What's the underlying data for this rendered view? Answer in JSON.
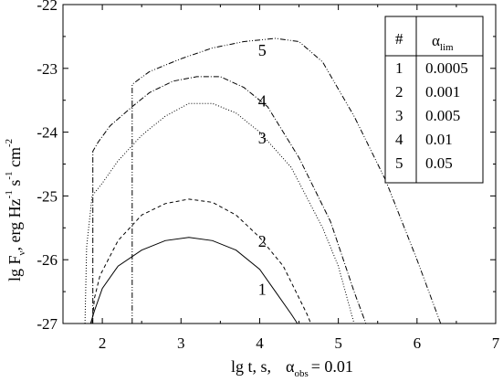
{
  "chart_data": {
    "type": "line",
    "xlabel_parts": {
      "main": "lg t, s,",
      "alpha": "α",
      "alpha_sub": "obs",
      "value": "= 0.01"
    },
    "ylabel_parts": {
      "a": "lg F",
      "a_sub": "ν",
      "b": ", erg Hz",
      "e1": "-1",
      "c": " s",
      "e2": "-1",
      "d": " cm",
      "e3": "-2"
    },
    "xlim": [
      1.5,
      7
    ],
    "ylim": [
      -27,
      -22
    ],
    "xticks": [
      "2",
      "3",
      "4",
      "5",
      "6",
      "7"
    ],
    "xtick_values": [
      2,
      3,
      4,
      5,
      6,
      7
    ],
    "yticks": [
      "-27",
      "-26",
      "-25",
      "-24",
      "-23",
      "-22"
    ],
    "ytick_values": [
      -27,
      -26,
      -25,
      -24,
      -23,
      -22
    ],
    "legend": {
      "header": [
        "#",
        "α"
      ],
      "header_sub": "lim",
      "rows": [
        [
          "1",
          "0.0005"
        ],
        [
          "2",
          "0.001"
        ],
        [
          "3",
          "0.005"
        ],
        [
          "4",
          "0.01"
        ],
        [
          "5",
          "0.05"
        ]
      ]
    },
    "series": [
      {
        "label": "1",
        "label_pos": [
          3.98,
          -26.55
        ],
        "style": "solid",
        "points": [
          [
            1.85,
            -27
          ],
          [
            1.9,
            -26.8
          ],
          [
            2.0,
            -26.45
          ],
          [
            2.2,
            -26.1
          ],
          [
            2.5,
            -25.85
          ],
          [
            2.8,
            -25.7
          ],
          [
            3.1,
            -25.65
          ],
          [
            3.4,
            -25.7
          ],
          [
            3.7,
            -25.85
          ],
          [
            4.0,
            -26.15
          ],
          [
            4.2,
            -26.5
          ],
          [
            4.4,
            -26.85
          ],
          [
            4.48,
            -27
          ]
        ]
      },
      {
        "label": "2",
        "label_pos": [
          3.98,
          -25.8
        ],
        "style": "dashed",
        "points": [
          [
            1.87,
            -27
          ],
          [
            1.9,
            -26.6
          ],
          [
            1.97,
            -26.25
          ],
          [
            2.2,
            -25.7
          ],
          [
            2.5,
            -25.3
          ],
          [
            2.8,
            -25.12
          ],
          [
            3.1,
            -25.05
          ],
          [
            3.4,
            -25.1
          ],
          [
            3.7,
            -25.3
          ],
          [
            4.0,
            -25.65
          ],
          [
            4.3,
            -26.1
          ],
          [
            4.6,
            -26.85
          ],
          [
            4.65,
            -27
          ]
        ]
      },
      {
        "label": "3",
        "label_pos": [
          3.98,
          -24.18
        ],
        "style": "dotted",
        "points": [
          [
            1.78,
            -27
          ],
          [
            1.8,
            -25.8
          ],
          [
            1.87,
            -25.0
          ],
          [
            2.0,
            -24.8
          ],
          [
            2.2,
            -24.45
          ],
          [
            2.5,
            -24.05
          ],
          [
            2.8,
            -23.75
          ],
          [
            3.1,
            -23.55
          ],
          [
            3.4,
            -23.55
          ],
          [
            3.7,
            -23.7
          ],
          [
            4.0,
            -24.0
          ],
          [
            4.4,
            -24.55
          ],
          [
            4.8,
            -25.5
          ],
          [
            5.0,
            -26.1
          ],
          [
            5.2,
            -27
          ]
        ]
      },
      {
        "label": "4",
        "label_pos": [
          3.98,
          -23.6
        ],
        "style": "dashdot",
        "points": [
          [
            1.88,
            -27
          ],
          [
            1.88,
            -24.3
          ],
          [
            1.95,
            -24.15
          ],
          [
            2.1,
            -23.9
          ],
          [
            2.38,
            -23.6
          ],
          [
            2.6,
            -23.38
          ],
          [
            2.9,
            -23.2
          ],
          [
            3.2,
            -23.13
          ],
          [
            3.5,
            -23.13
          ],
          [
            3.8,
            -23.3
          ],
          [
            4.1,
            -23.6
          ],
          [
            4.5,
            -24.4
          ],
          [
            4.9,
            -25.4
          ],
          [
            5.2,
            -26.5
          ],
          [
            5.35,
            -27
          ]
        ]
      },
      {
        "label": "5",
        "label_pos": [
          3.98,
          -22.8
        ],
        "style": "dashdotdot",
        "points": [
          [
            2.38,
            -27
          ],
          [
            2.38,
            -23.25
          ],
          [
            2.6,
            -23.05
          ],
          [
            3.0,
            -22.85
          ],
          [
            3.4,
            -22.68
          ],
          [
            3.8,
            -22.58
          ],
          [
            4.2,
            -22.53
          ],
          [
            4.5,
            -22.58
          ],
          [
            4.8,
            -22.9
          ],
          [
            5.2,
            -23.75
          ],
          [
            5.6,
            -24.75
          ],
          [
            6.0,
            -26.0
          ],
          [
            6.3,
            -27
          ]
        ]
      }
    ]
  }
}
